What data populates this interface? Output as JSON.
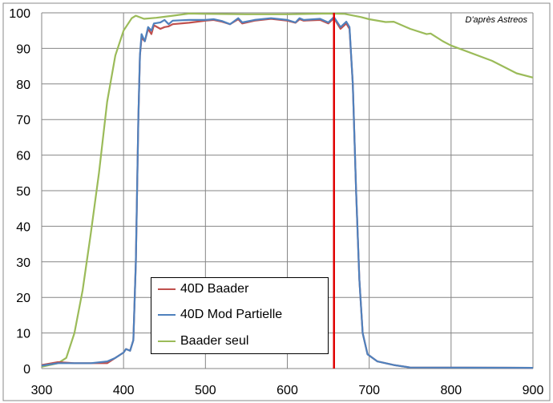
{
  "chart_data": {
    "type": "line",
    "title": "",
    "xlabel": "",
    "ylabel": "",
    "xlim": [
      300,
      900
    ],
    "ylim": [
      0,
      100
    ],
    "xticks": [
      300,
      400,
      500,
      600,
      700,
      800,
      900
    ],
    "yticks": [
      0,
      10,
      20,
      30,
      40,
      50,
      60,
      70,
      80,
      90,
      100
    ],
    "grid": true,
    "legend_placement": "bottom-left-center",
    "annotation": "D'après Astreos",
    "marker_line": {
      "x": 657,
      "color": "#e00000"
    },
    "series": [
      {
        "name": "40D Baader",
        "color": "#c0504d",
        "x": [
          300,
          320,
          340,
          360,
          380,
          390,
          400,
          403,
          408,
          412,
          415,
          418,
          420,
          422,
          426,
          430,
          434,
          437,
          445,
          450,
          455,
          460,
          480,
          500,
          510,
          520,
          530,
          540,
          545,
          560,
          580,
          600,
          610,
          615,
          620,
          640,
          650,
          657,
          665,
          672,
          676,
          680,
          684,
          688,
          692,
          698,
          710,
          730,
          750,
          900
        ],
        "y": [
          1,
          1.8,
          1.5,
          1.5,
          1.5,
          3,
          4.5,
          5.5,
          5,
          8,
          30,
          70,
          88,
          93,
          92,
          95.5,
          94,
          96.5,
          95.5,
          96,
          96.2,
          96.8,
          97.2,
          97.8,
          98,
          97.5,
          96.8,
          98.2,
          97,
          97.8,
          98.3,
          97.8,
          97.2,
          98.2,
          97.8,
          98,
          97,
          98.5,
          95.5,
          97,
          95.5,
          80,
          50,
          25,
          10,
          4,
          2,
          1,
          0.3,
          0.2
        ]
      },
      {
        "name": "40D Mod Partielle",
        "color": "#4f81bd",
        "x": [
          300,
          320,
          340,
          360,
          380,
          390,
          400,
          403,
          408,
          412,
          415,
          418,
          420,
          422,
          426,
          430,
          434,
          437,
          445,
          450,
          455,
          460,
          480,
          500,
          510,
          520,
          530,
          540,
          545,
          560,
          580,
          600,
          610,
          615,
          620,
          640,
          650,
          657,
          665,
          672,
          676,
          680,
          684,
          688,
          692,
          698,
          710,
          730,
          750,
          900
        ],
        "y": [
          0.8,
          1.5,
          1.5,
          1.5,
          2,
          3,
          4.5,
          5.5,
          5,
          8,
          30,
          70,
          88,
          94,
          92,
          96,
          95,
          97,
          97.3,
          98,
          96.8,
          97.8,
          98,
          98,
          98.2,
          97.7,
          96.8,
          98.5,
          97.3,
          98,
          98.5,
          98,
          97.3,
          98.5,
          98,
          98.3,
          97.3,
          98.8,
          96,
          97.5,
          96,
          80,
          50,
          25,
          10,
          4,
          2,
          1,
          0.3,
          0.2
        ]
      },
      {
        "name": "Baader seul",
        "color": "#9bbb59",
        "x": [
          300,
          320,
          330,
          340,
          350,
          360,
          370,
          380,
          390,
          400,
          410,
          415,
          425,
          440,
          460,
          480,
          500,
          550,
          600,
          650,
          670,
          690,
          700,
          720,
          730,
          750,
          770,
          775,
          790,
          800,
          850,
          880,
          900
        ],
        "y": [
          0.5,
          1.5,
          3,
          10,
          22,
          38,
          55,
          75,
          88,
          95,
          98.5,
          99.2,
          98.3,
          98.6,
          99.2,
          99.8,
          99.7,
          99.6,
          99.6,
          99.8,
          99.7,
          98.8,
          98.2,
          97.4,
          97.5,
          95.5,
          94,
          94.2,
          92,
          90.8,
          86.5,
          83,
          81.8
        ]
      }
    ]
  }
}
